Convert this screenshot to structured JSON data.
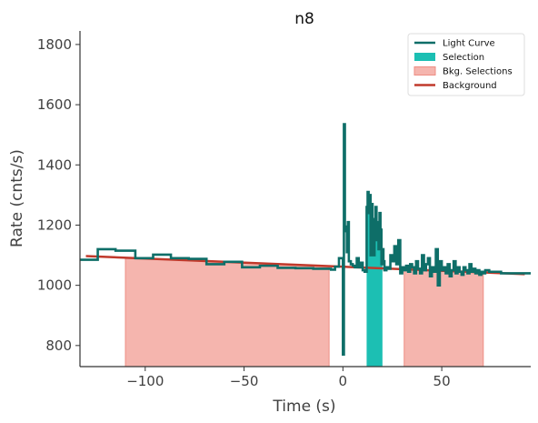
{
  "chart_data": {
    "type": "line",
    "title": "n8",
    "xlabel": "Time (s)",
    "ylabel": "Rate (cnts/s)",
    "xlim": [
      -133,
      95
    ],
    "ylim": [
      730,
      1845
    ],
    "xticks": [
      -100,
      -50,
      0,
      50
    ],
    "xtick_labels": [
      "−100",
      "−50",
      "0",
      "50"
    ],
    "yticks": [
      800,
      1000,
      1200,
      1400,
      1600,
      1800
    ],
    "ytick_labels": [
      "800",
      "1000",
      "1200",
      "1400",
      "1600",
      "1800"
    ],
    "grid": false,
    "legend_position": "top-right",
    "legend": [
      {
        "label": "Light Curve",
        "kind": "line",
        "color": "#0e6e68"
      },
      {
        "label": "Selection",
        "kind": "patch",
        "color": "#1cbfb3"
      },
      {
        "label": "Bkg. Selections",
        "kind": "patch",
        "color": "#f5b5ae",
        "edge": "#ee8e84"
      },
      {
        "label": "Background",
        "kind": "line",
        "color": "#c0392b"
      }
    ],
    "light_curve": {
      "color": "#0e6e68",
      "x": [
        -133,
        -124,
        -115,
        -105,
        -96,
        -87,
        -78,
        -69,
        -60,
        -51,
        -42,
        -33,
        -24,
        -15,
        -6,
        -4,
        -2,
        0,
        0.5,
        1,
        1.5,
        2,
        2.5,
        3,
        4,
        5,
        6,
        7,
        8,
        9,
        10,
        11,
        12,
        12.5,
        13,
        13.5,
        14,
        14.5,
        15,
        15.5,
        16,
        16.5,
        17,
        17.5,
        18,
        18.5,
        19,
        19.5,
        20,
        20.5,
        21,
        22,
        23,
        24,
        25,
        26,
        27,
        28,
        29,
        30,
        31,
        32,
        33,
        34,
        35,
        36,
        37,
        38,
        39,
        40,
        41,
        42,
        43,
        44,
        45,
        46,
        47,
        48,
        49,
        50,
        51,
        52,
        53,
        54,
        55,
        56,
        57,
        58,
        59,
        60,
        61,
        62,
        63,
        64,
        65,
        66,
        67,
        68,
        69,
        70,
        71,
        72,
        74,
        80,
        89,
        95
      ],
      "y": [
        1085,
        1120,
        1115,
        1090,
        1102,
        1090,
        1088,
        1070,
        1078,
        1060,
        1065,
        1058,
        1057,
        1055,
        1052,
        1062,
        1090,
        770,
        1535,
        1195,
        1180,
        1110,
        1210,
        1080,
        1070,
        1065,
        1060,
        1090,
        1060,
        1075,
        1050,
        1045,
        1260,
        1310,
        1240,
        1300,
        1100,
        1270,
        1220,
        1100,
        1195,
        1260,
        1150,
        1210,
        1120,
        1240,
        1185,
        1070,
        1120,
        1080,
        1050,
        1060,
        1055,
        1100,
        1080,
        1130,
        1070,
        1150,
        1040,
        1060,
        1050,
        1065,
        1045,
        1070,
        1060,
        1040,
        1080,
        1055,
        1040,
        1100,
        1050,
        1070,
        1090,
        1030,
        1060,
        1045,
        1120,
        1000,
        1080,
        1050,
        1060,
        1040,
        1070,
        1030,
        1050,
        1080,
        1040,
        1060,
        1045,
        1035,
        1060,
        1050,
        1040,
        1070,
        1045,
        1055,
        1040,
        1050,
        1035,
        1045,
        1040,
        1050,
        1045,
        1040,
        1040,
        1040
      ]
    },
    "selection": {
      "color": "#1cbfb3",
      "x_range": [
        12,
        20
      ]
    },
    "background_selections": {
      "color": "#f5b5ae",
      "edge": "#ee8e84",
      "ranges": [
        [
          -110,
          -7
        ],
        [
          31,
          71
        ]
      ]
    },
    "background_fit": {
      "color": "#c0392b",
      "x": [
        -130,
        92
      ],
      "y": [
        1097,
        1037
      ]
    }
  }
}
